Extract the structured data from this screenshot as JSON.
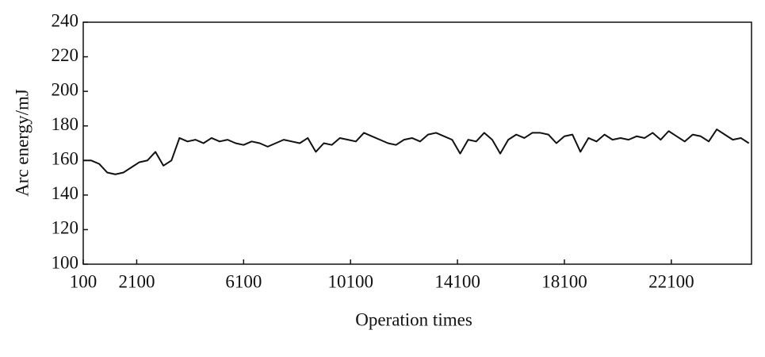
{
  "chart_data": {
    "type": "line",
    "x_label": "Operation times",
    "y_label": "Arc energy/mJ",
    "x": [
      100,
      400,
      700,
      1000,
      1300,
      1600,
      1900,
      2200,
      2500,
      2800,
      3100,
      3400,
      3700,
      4000,
      4300,
      4600,
      4900,
      5200,
      5500,
      5800,
      6100,
      6400,
      6700,
      7000,
      7300,
      7600,
      7900,
      8200,
      8500,
      8800,
      9100,
      9400,
      9700,
      10000,
      10300,
      10600,
      10900,
      11200,
      11500,
      11800,
      12100,
      12400,
      12700,
      13000,
      13300,
      13600,
      13900,
      14200,
      14500,
      14800,
      15100,
      15400,
      15700,
      16000,
      16300,
      16600,
      16900,
      17200,
      17500,
      17800,
      18100,
      18400,
      18700,
      19000,
      19300,
      19600,
      19900,
      20200,
      20500,
      20800,
      21100,
      21400,
      21700,
      22000,
      22300,
      22600,
      22900,
      23200,
      23500,
      23800,
      24100,
      24400,
      24700,
      25000
    ],
    "series": [
      {
        "color": "#111111",
        "values": [
          160,
          160,
          158,
          153,
          152,
          153,
          156,
          159,
          160,
          165,
          157,
          160,
          173,
          171,
          172,
          170,
          173,
          171,
          172,
          170,
          169,
          171,
          170,
          168,
          170,
          172,
          171,
          170,
          173,
          165,
          170,
          169,
          173,
          172,
          171,
          176,
          174,
          172,
          170,
          169,
          172,
          173,
          171,
          175,
          176,
          174,
          172,
          164,
          172,
          171,
          176,
          172,
          164,
          172,
          175,
          173,
          176,
          176,
          175,
          170,
          174,
          175,
          165,
          173,
          171,
          175,
          172,
          173,
          172,
          174,
          173,
          176,
          172,
          177,
          174,
          171,
          175,
          174,
          171,
          178,
          175,
          172,
          173,
          170
        ]
      }
    ],
    "xlim": [
      100,
      25100
    ],
    "xticks": [
      100,
      2100,
      6100,
      10100,
      14100,
      18100,
      22100
    ],
    "ylim": [
      100,
      240
    ],
    "yticks": [
      100,
      120,
      140,
      160,
      180,
      200,
      220,
      240
    ]
  }
}
